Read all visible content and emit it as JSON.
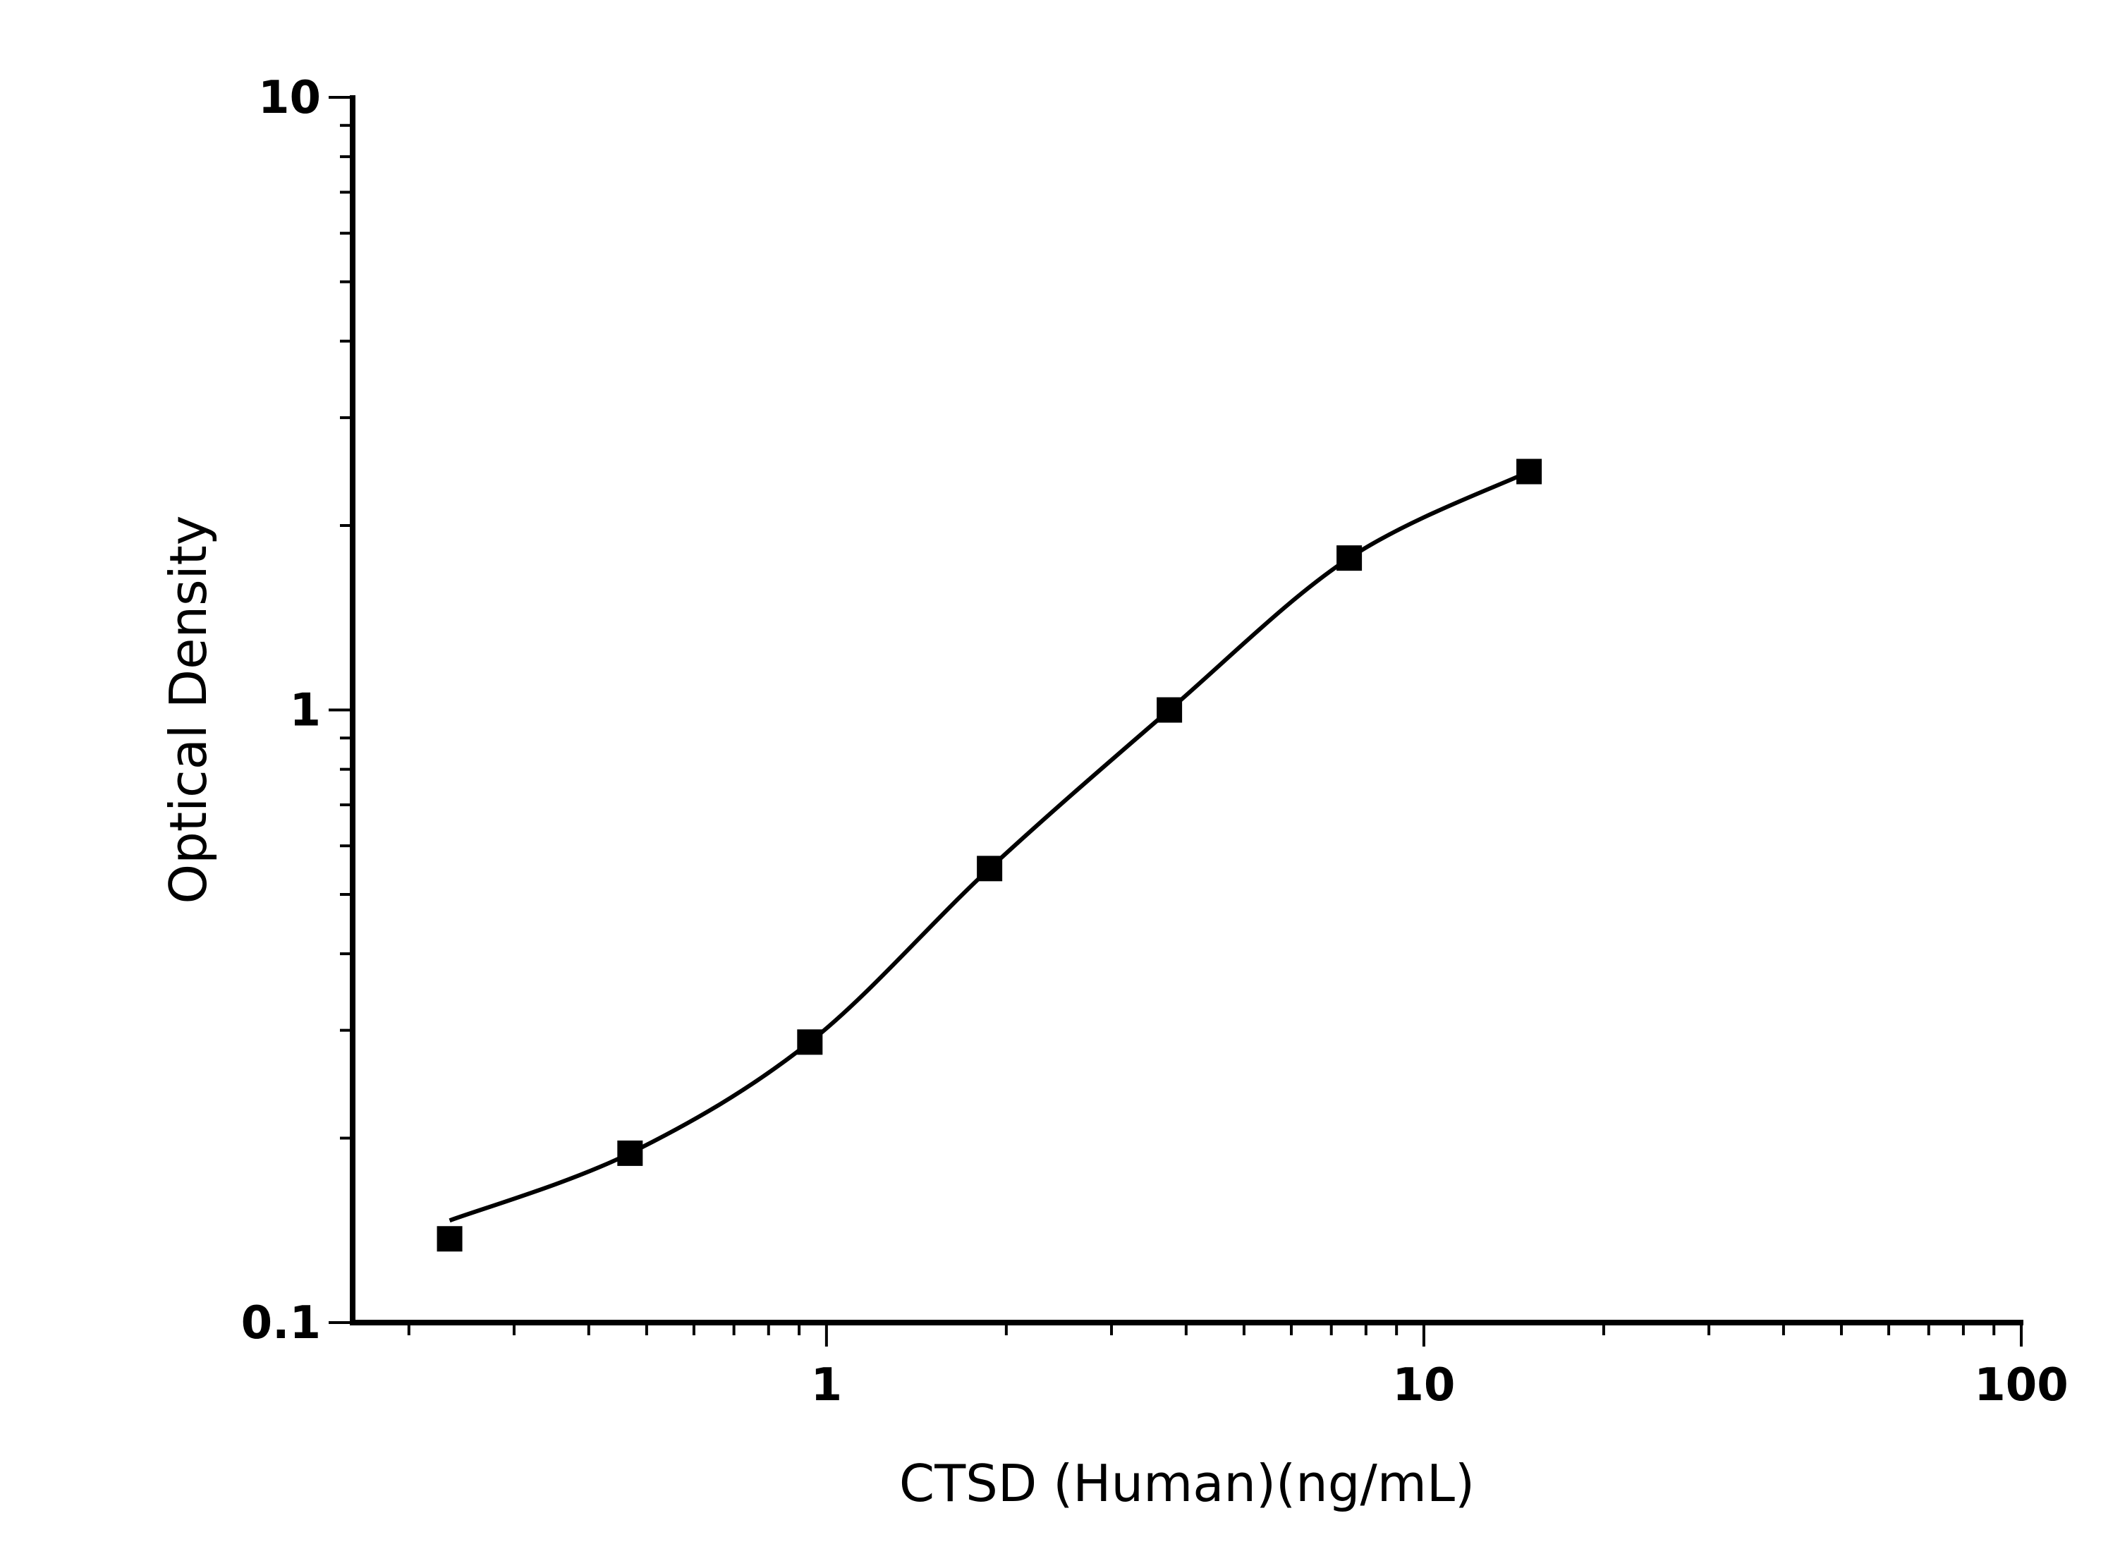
{
  "chart_data": {
    "type": "scatter",
    "title": "",
    "xlabel": "CTSD (Human)(ng/mL)",
    "ylabel": "Optical Density",
    "x_scale": "log",
    "y_scale": "log",
    "xlim": [
      0.161,
      100
    ],
    "ylim": [
      0.1,
      10
    ],
    "x_ticks": [
      {
        "value": 1,
        "label": "1"
      },
      {
        "value": 10,
        "label": "10"
      },
      {
        "value": 100,
        "label": "100"
      }
    ],
    "y_ticks": [
      {
        "value": 0.1,
        "label": "0.1"
      },
      {
        "value": 1,
        "label": "1"
      },
      {
        "value": 10,
        "label": "10"
      }
    ],
    "grid": false,
    "marker": "square",
    "fit_line": "smooth curve",
    "color": "#000000",
    "series": [
      {
        "x": [
          0.234,
          0.469,
          0.938,
          1.875,
          3.75,
          7.5,
          15
        ],
        "y": [
          0.137,
          0.189,
          0.287,
          0.551,
          1.0,
          1.77,
          2.45
        ]
      }
    ]
  }
}
